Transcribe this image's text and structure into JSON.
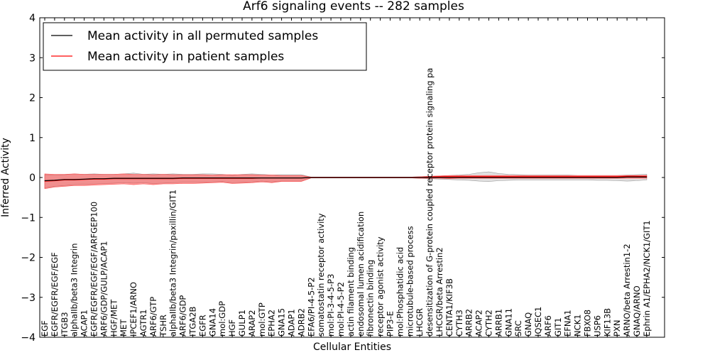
{
  "chart_data": {
    "type": "line",
    "title": "Arf6 signaling events -- 282 samples",
    "xlabel": "Cellular Entities",
    "ylabel": "Inferred Activity",
    "ylim": [
      -4,
      4
    ],
    "yticks": [
      -4,
      -3,
      -2,
      -1,
      0,
      1,
      2,
      3,
      4
    ],
    "legend": {
      "position": "top-left",
      "entries": [
        {
          "label": "Mean activity in all permuted samples",
          "color": "#000000"
        },
        {
          "label": "Mean activity in patient samples",
          "color": "#ff0000"
        }
      ]
    },
    "categories": [
      "EGF",
      "EGFR/EGFR/EGF/EGF",
      "ITGB3",
      "alphaIIb/beta3 Integrin",
      "ACAP1",
      "EGFR/EGFR/EGF/EGF/ARFGEP100",
      "ARF6/GDP/GULP/ACAP1",
      "HGF/MET",
      "MET",
      "IPCEF1/ARNO",
      "AGTR1",
      "ARF6/GTP",
      "TSHR",
      "alphaIIb/beta3 Integrin/paxillin/GIT1",
      "ARF6/GDP",
      "ITGA2B",
      "EGFR",
      "GNA14",
      "mol:GDP",
      "HGF",
      "GULP1",
      "ARAP2",
      "mol:GTP",
      "EPHA2",
      "GNA15",
      "ADAP1",
      "ADRB2",
      "EFA6/PI-4-5-P2",
      "somatostatin receptor activity",
      "mol:PI-3-4-5-P3",
      "mol:PI-4-5-P2",
      "actin filament binding",
      "endosomal lumen acidification",
      "fibronectin binding",
      "receptor agonist activity",
      "PIP3-E",
      "mol:Phosphatidic acid",
      "microtubule-based process",
      "LHCGR",
      "desensitization of G-protein coupled receptor protein signaling pa",
      "LHCGR/beta Arrestin2",
      "CENTA1/KIF3B",
      "CYTH3",
      "ARRB2",
      "ACAP2",
      "CYTH2",
      "ARRB1",
      "GNA11",
      "SRC",
      "GNAQ",
      "IQSEC1",
      "ARF6",
      "GIT1",
      "EFNA1",
      "NCK1",
      "FBXO8",
      "USP6",
      "KIF13B",
      "PXN",
      "ARNO/beta Arrestin1-2",
      "GNAQ/ARNO",
      "Ephrin A1/EPHA2/NCK1/GIT1"
    ],
    "series": [
      {
        "name": "Mean activity in all permuted samples",
        "color": "#000000",
        "values": [
          -0.08,
          -0.07,
          -0.05,
          -0.05,
          -0.04,
          -0.03,
          -0.03,
          -0.02,
          -0.02,
          -0.02,
          -0.02,
          -0.02,
          -0.02,
          -0.02,
          -0.01,
          -0.01,
          -0.01,
          -0.01,
          -0.01,
          -0.01,
          -0.01,
          -0.01,
          -0.01,
          -0.01,
          -0.01,
          -0.01,
          -0.01,
          0,
          0,
          0,
          0,
          0,
          0,
          0,
          0,
          0,
          0,
          0,
          0,
          0,
          0,
          0,
          0,
          0,
          0,
          0,
          0,
          0,
          0,
          0,
          0,
          0,
          0,
          0,
          0,
          0,
          0,
          0,
          0,
          0.01,
          0.01,
          0.01
        ],
        "band": {
          "upper": [
            0.07,
            0.06,
            0.07,
            0.09,
            0.08,
            0.09,
            0.08,
            0.08,
            0.09,
            0.11,
            0.08,
            0.09,
            0.08,
            0.09,
            0.08,
            0.08,
            0.09,
            0.09,
            0.08,
            0.05,
            0.08,
            0.09,
            0.08,
            0.06,
            0.07,
            0.07,
            0.07,
            0.01,
            0.01,
            0.01,
            0.01,
            0.01,
            0.01,
            0.01,
            0.01,
            0.01,
            0.01,
            0.01,
            0.02,
            0.03,
            0.04,
            0.05,
            0.06,
            0.08,
            0.12,
            0.14,
            0.1,
            0.08,
            0.07,
            0.06,
            0.06,
            0.06,
            0.06,
            0.06,
            0.05,
            0.05,
            0.05,
            0.05,
            0.05,
            0.06,
            0.07,
            0.08
          ],
          "lower": [
            -0.26,
            -0.22,
            -0.2,
            -0.18,
            -0.17,
            -0.16,
            -0.15,
            -0.14,
            -0.13,
            -0.14,
            -0.13,
            -0.15,
            -0.14,
            -0.13,
            -0.12,
            -0.12,
            -0.12,
            -0.11,
            -0.1,
            -0.13,
            -0.12,
            -0.11,
            -0.09,
            -0.11,
            -0.09,
            -0.09,
            -0.09,
            -0.01,
            -0.01,
            -0.01,
            -0.01,
            -0.01,
            -0.01,
            -0.01,
            -0.01,
            -0.01,
            -0.01,
            -0.01,
            -0.02,
            -0.03,
            -0.04,
            -0.05,
            -0.06,
            -0.07,
            -0.09,
            -0.1,
            -0.08,
            -0.07,
            -0.06,
            -0.06,
            -0.06,
            -0.06,
            -0.06,
            -0.06,
            -0.06,
            -0.06,
            -0.07,
            -0.07,
            -0.08,
            -0.09,
            -0.08,
            -0.06
          ]
        }
      },
      {
        "name": "Mean activity in patient samples",
        "color": "#ff0000",
        "values": [
          -0.09,
          -0.08,
          -0.06,
          -0.06,
          -0.05,
          -0.04,
          -0.04,
          -0.03,
          -0.03,
          -0.03,
          -0.03,
          -0.03,
          -0.03,
          -0.03,
          -0.02,
          -0.02,
          -0.02,
          -0.02,
          -0.02,
          -0.02,
          -0.02,
          -0.02,
          -0.01,
          -0.01,
          -0.01,
          -0.01,
          -0.01,
          0,
          0,
          0,
          0,
          0,
          0,
          0,
          0,
          0,
          0,
          0,
          0,
          0.01,
          0.02,
          0.02,
          0.02,
          0.02,
          0.02,
          0.02,
          0.02,
          0.02,
          0.02,
          0.02,
          0.02,
          0.02,
          0.02,
          0.02,
          0.02,
          0.02,
          0.02,
          0.02,
          0.02,
          0.03,
          0.03,
          0.03
        ],
        "band": {
          "upper": [
            0.09,
            0.08,
            0.08,
            0.09,
            0.08,
            0.08,
            0.08,
            0.08,
            0.09,
            0.08,
            0.08,
            0.07,
            0.08,
            0.07,
            0.07,
            0.07,
            0.07,
            0.06,
            0.07,
            0.07,
            0.07,
            0.07,
            0.06,
            0.06,
            0.05,
            0.05,
            0.05,
            0.01,
            0.01,
            0.01,
            0.01,
            0.01,
            0.01,
            0.01,
            0.01,
            0.01,
            0.01,
            0.01,
            0.02,
            0.03,
            0.04,
            0.05,
            0.05,
            0.05,
            0.05,
            0.05,
            0.05,
            0.05,
            0.05,
            0.05,
            0.05,
            0.05,
            0.05,
            0.05,
            0.05,
            0.05,
            0.05,
            0.05,
            0.05,
            0.05,
            0.05,
            0.05
          ],
          "lower": [
            -0.28,
            -0.24,
            -0.22,
            -0.2,
            -0.2,
            -0.19,
            -0.18,
            -0.17,
            -0.16,
            -0.18,
            -0.16,
            -0.18,
            -0.16,
            -0.16,
            -0.15,
            -0.15,
            -0.14,
            -0.13,
            -0.12,
            -0.15,
            -0.14,
            -0.13,
            -0.11,
            -0.13,
            -0.1,
            -0.1,
            -0.1,
            -0.01,
            -0.01,
            -0.01,
            -0.01,
            -0.01,
            -0.01,
            -0.01,
            -0.01,
            -0.01,
            -0.01,
            -0.01,
            -0.02,
            -0.02,
            -0.02,
            -0.03,
            -0.02,
            -0.02,
            -0.02,
            -0.02,
            -0.02,
            -0.02,
            -0.02,
            -0.02,
            -0.02,
            -0.02,
            -0.02,
            -0.02,
            -0.02,
            -0.02,
            -0.02,
            -0.02,
            -0.02,
            -0.02,
            -0.02,
            -0.02
          ]
        }
      }
    ],
    "band_colors": {
      "permuted": "#c8c8c8",
      "patient": "#ff4d4d"
    }
  }
}
